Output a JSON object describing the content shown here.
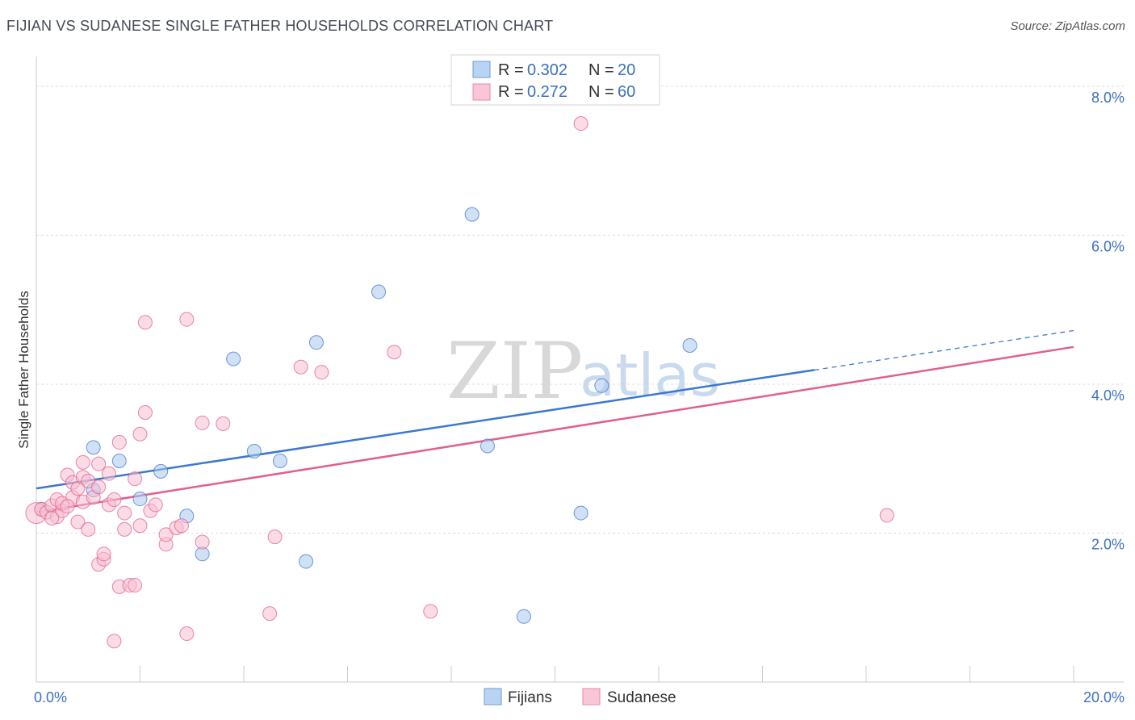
{
  "header": {
    "title": "FIJIAN VS SUDANESE SINGLE FATHER HOUSEHOLDS CORRELATION CHART",
    "source": "Source: ZipAtlas.com"
  },
  "watermark": {
    "zip": "ZIP",
    "atlas": "atlas"
  },
  "legend": {
    "rows": [
      {
        "r_label": "R =",
        "r_value": "0.302",
        "n_label": "N =",
        "n_value": "20"
      },
      {
        "r_label": "R =",
        "r_value": "0.272",
        "n_label": "N =",
        "n_value": "60"
      }
    ]
  },
  "chart_data": {
    "type": "scatter",
    "title": "FIJIAN VS SUDANESE SINGLE FATHER HOUSEHOLDS CORRELATION CHART",
    "xlabel": "",
    "ylabel": "Single Father Households",
    "xlim": [
      0,
      20
    ],
    "ylim": [
      0,
      8.4
    ],
    "x_tick_labels": [
      {
        "value": 0,
        "label": "0.0%"
      },
      {
        "value": 20,
        "label": "20.0%"
      }
    ],
    "y_tick_labels": [
      {
        "value": 2,
        "label": "2.0%"
      },
      {
        "value": 4,
        "label": "4.0%"
      },
      {
        "value": 6,
        "label": "6.0%"
      },
      {
        "value": 8,
        "label": "8.0%"
      }
    ],
    "grid": true,
    "legend_position": "top-center",
    "series": [
      {
        "name": "Fijians",
        "color": "#3a78d0",
        "fill": "#a9c8ee",
        "r": 0.302,
        "n": 20,
        "trend": {
          "x_start": 0,
          "y_start": 2.6,
          "x_solid_end": 15,
          "x_end": 20,
          "y_end": 4.72
        },
        "points": [
          [
            0.1,
            2.32
          ],
          [
            1.1,
            2.58
          ],
          [
            1.1,
            3.15
          ],
          [
            1.6,
            2.97
          ],
          [
            2.0,
            2.46
          ],
          [
            2.4,
            2.83
          ],
          [
            2.9,
            2.23
          ],
          [
            3.2,
            1.72
          ],
          [
            3.8,
            4.34
          ],
          [
            4.2,
            3.1
          ],
          [
            4.7,
            2.97
          ],
          [
            5.4,
            4.56
          ],
          [
            5.2,
            1.62
          ],
          [
            6.6,
            5.24
          ],
          [
            8.4,
            6.28
          ],
          [
            8.7,
            3.17
          ],
          [
            9.4,
            0.88
          ],
          [
            10.5,
            2.27
          ],
          [
            10.9,
            3.98
          ],
          [
            12.6,
            4.52
          ]
        ]
      },
      {
        "name": "Sudanese",
        "color": "#e0608c",
        "fill": "#f7bed0",
        "r": 0.272,
        "n": 60,
        "trend": {
          "x_start": 0,
          "y_start": 2.28,
          "x_end": 20,
          "y_end": 4.5
        },
        "points": [
          [
            0.0,
            2.27
          ],
          [
            0.1,
            2.32
          ],
          [
            0.2,
            2.28
          ],
          [
            0.3,
            2.37
          ],
          [
            0.4,
            2.45
          ],
          [
            0.4,
            2.22
          ],
          [
            0.5,
            2.3
          ],
          [
            0.5,
            2.4
          ],
          [
            0.6,
            2.78
          ],
          [
            0.7,
            2.48
          ],
          [
            0.7,
            2.68
          ],
          [
            0.8,
            2.15
          ],
          [
            0.8,
            2.6
          ],
          [
            0.9,
            2.75
          ],
          [
            0.9,
            2.42
          ],
          [
            0.9,
            2.95
          ],
          [
            1.0,
            2.7
          ],
          [
            1.0,
            2.05
          ],
          [
            1.1,
            2.48
          ],
          [
            1.2,
            2.93
          ],
          [
            1.2,
            2.62
          ],
          [
            1.2,
            1.58
          ],
          [
            1.3,
            1.65
          ],
          [
            1.3,
            1.72
          ],
          [
            1.4,
            2.8
          ],
          [
            1.4,
            2.38
          ],
          [
            1.5,
            0.55
          ],
          [
            1.5,
            2.45
          ],
          [
            1.6,
            3.22
          ],
          [
            1.6,
            1.28
          ],
          [
            1.7,
            2.05
          ],
          [
            1.7,
            2.27
          ],
          [
            1.8,
            1.3
          ],
          [
            1.9,
            2.73
          ],
          [
            1.9,
            1.3
          ],
          [
            2.0,
            2.1
          ],
          [
            2.0,
            3.33
          ],
          [
            2.1,
            4.83
          ],
          [
            2.1,
            3.62
          ],
          [
            2.2,
            2.3
          ],
          [
            2.3,
            2.38
          ],
          [
            2.5,
            1.85
          ],
          [
            2.5,
            1.98
          ],
          [
            2.7,
            2.07
          ],
          [
            2.8,
            2.1
          ],
          [
            2.9,
            4.87
          ],
          [
            2.9,
            0.65
          ],
          [
            3.2,
            1.88
          ],
          [
            3.2,
            3.48
          ],
          [
            3.6,
            3.47
          ],
          [
            4.5,
            0.92
          ],
          [
            4.6,
            1.95
          ],
          [
            5.1,
            4.23
          ],
          [
            5.5,
            4.16
          ],
          [
            6.9,
            4.43
          ],
          [
            7.6,
            0.95
          ],
          [
            10.5,
            7.5
          ],
          [
            16.4,
            2.24
          ],
          [
            0.3,
            2.2
          ],
          [
            0.6,
            2.36
          ]
        ]
      }
    ]
  }
}
